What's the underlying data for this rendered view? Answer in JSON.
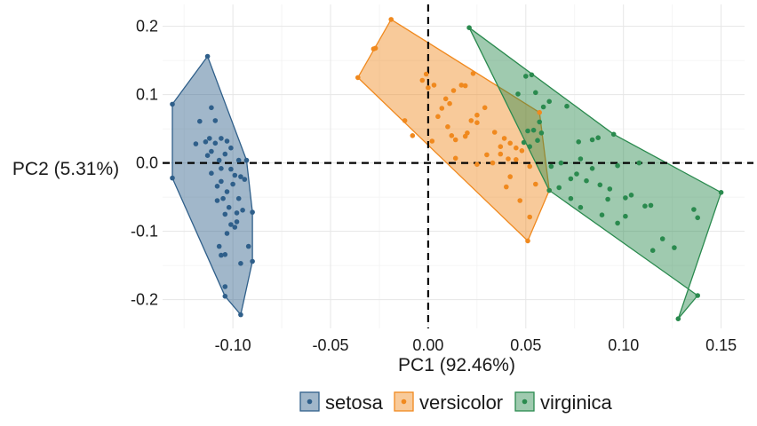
{
  "chart_data": {
    "type": "scatter",
    "xlabel": "PC1 (92.46%)",
    "ylabel": "PC2 (5.31%)",
    "xlim": [
      -0.136,
      0.162
    ],
    "ylim": [
      -0.242,
      0.232
    ],
    "xticks": [
      -0.1,
      -0.05,
      0.0,
      0.05,
      0.1,
      0.15
    ],
    "xtick_labels": [
      "-0.10",
      "-0.05",
      "0.00",
      "0.05",
      "0.10",
      "0.15"
    ],
    "yticks": [
      -0.2,
      -0.1,
      0.0,
      0.1,
      0.2
    ],
    "ytick_labels": [
      "-0.2",
      "-0.1",
      "0.0",
      "0.1",
      "0.2"
    ],
    "grid": true,
    "reference_lines": {
      "x": 0,
      "y": 0,
      "style": "dashed"
    },
    "legend_position": "bottom",
    "series": [
      {
        "name": "setosa",
        "color": "#2f5f8a",
        "hull": [
          [
            -0.113,
            0.156
          ],
          [
            -0.131,
            0.086
          ],
          [
            -0.131,
            -0.022
          ],
          [
            -0.104,
            -0.195
          ],
          [
            -0.096,
            -0.222
          ],
          [
            -0.09,
            -0.144
          ],
          [
            -0.09,
            -0.072
          ],
          [
            -0.093,
            0.004
          ]
        ],
        "points": [
          [
            -0.113,
            0.156
          ],
          [
            -0.131,
            0.086
          ],
          [
            -0.131,
            -0.022
          ],
          [
            -0.104,
            -0.195
          ],
          [
            -0.096,
            -0.222
          ],
          [
            -0.09,
            -0.144
          ],
          [
            -0.09,
            -0.072
          ],
          [
            -0.093,
            0.004
          ],
          [
            -0.117,
            0.061
          ],
          [
            -0.111,
            0.081
          ],
          [
            -0.109,
            0.062
          ],
          [
            -0.112,
            0.036
          ],
          [
            -0.114,
            0.031
          ],
          [
            -0.106,
            0.036
          ],
          [
            -0.103,
            0.032
          ],
          [
            -0.109,
            0.029
          ],
          [
            -0.101,
            0.022
          ],
          [
            -0.111,
            0.017
          ],
          [
            -0.104,
            0.013
          ],
          [
            -0.097,
            0.004
          ],
          [
            -0.119,
            0.028
          ],
          [
            -0.113,
            0.011
          ],
          [
            -0.107,
            0.004
          ],
          [
            -0.106,
            -0.008
          ],
          [
            -0.101,
            -0.009
          ],
          [
            -0.111,
            -0.015
          ],
          [
            -0.099,
            -0.018
          ],
          [
            -0.096,
            -0.02
          ],
          [
            -0.106,
            -0.027
          ],
          [
            -0.1,
            -0.031
          ],
          [
            -0.094,
            -0.024
          ],
          [
            -0.108,
            -0.034
          ],
          [
            -0.103,
            -0.042
          ],
          [
            -0.105,
            -0.052
          ],
          [
            -0.097,
            -0.052
          ],
          [
            -0.095,
            -0.069
          ],
          [
            -0.098,
            -0.073
          ],
          [
            -0.104,
            -0.075
          ],
          [
            -0.108,
            -0.055
          ],
          [
            -0.102,
            -0.065
          ],
          [
            -0.101,
            -0.09
          ],
          [
            -0.099,
            -0.094
          ],
          [
            -0.103,
            -0.103
          ],
          [
            -0.092,
            -0.122
          ],
          [
            -0.106,
            -0.135
          ],
          [
            -0.104,
            -0.134
          ],
          [
            -0.096,
            -0.147
          ],
          [
            -0.104,
            -0.181
          ],
          [
            -0.107,
            -0.122
          ],
          [
            -0.098,
            -0.086
          ]
        ]
      },
      {
        "name": "versicolor",
        "color": "#f0891e",
        "hull": [
          [
            -0.019,
            0.21
          ],
          [
            0.057,
            0.074
          ],
          [
            0.062,
            -0.04
          ],
          [
            0.051,
            -0.114
          ],
          [
            -0.036,
            0.125
          ]
        ],
        "points": [
          [
            -0.019,
            0.21
          ],
          [
            0.057,
            0.074
          ],
          [
            0.062,
            -0.04
          ],
          [
            0.051,
            -0.114
          ],
          [
            -0.036,
            0.125
          ],
          [
            -0.028,
            0.167
          ],
          [
            -0.027,
            0.168
          ],
          [
            0.0,
            0.11
          ],
          [
            0.003,
            0.114
          ],
          [
            -0.003,
            0.121
          ],
          [
            -0.001,
            0.13
          ],
          [
            0.017,
            0.114
          ],
          [
            0.023,
            0.131
          ],
          [
            0.013,
            0.106
          ],
          [
            0.019,
            0.113
          ],
          [
            0.009,
            0.094
          ],
          [
            0.011,
            0.087
          ],
          [
            0.007,
            0.08
          ],
          [
            0.005,
            0.068
          ],
          [
            -0.012,
            0.062
          ],
          [
            0.01,
            0.053
          ],
          [
            0.012,
            0.04
          ],
          [
            0.02,
            0.044
          ],
          [
            0.025,
            0.059
          ],
          [
            0.025,
            0.07
          ],
          [
            0.029,
            0.081
          ],
          [
            0.022,
            0.062
          ],
          [
            -0.008,
            0.04
          ],
          [
            0.002,
            0.032
          ],
          [
            0.014,
            0.034
          ],
          [
            0.019,
            0.039
          ],
          [
            0.034,
            0.045
          ],
          [
            0.037,
            0.024
          ],
          [
            0.039,
            0.036
          ],
          [
            0.042,
            0.029
          ],
          [
            0.045,
            0.022
          ],
          [
            0.037,
            0.013
          ],
          [
            0.041,
            0.006
          ],
          [
            0.048,
            0.018
          ],
          [
            0.045,
            0.005
          ],
          [
            0.033,
            0.0
          ],
          [
            0.03,
            0.012
          ],
          [
            0.025,
            -0.002
          ],
          [
            0.014,
            0.007
          ],
          [
            0.042,
            -0.02
          ],
          [
            0.052,
            -0.005
          ],
          [
            0.055,
            -0.031
          ],
          [
            0.047,
            -0.055
          ],
          [
            0.052,
            -0.079
          ],
          [
            0.04,
            -0.035
          ]
        ]
      },
      {
        "name": "virginica",
        "color": "#2a8a4e",
        "hull": [
          [
            0.021,
            0.198
          ],
          [
            0.095,
            0.042
          ],
          [
            0.15,
            -0.043
          ],
          [
            0.128,
            -0.228
          ],
          [
            0.138,
            -0.194
          ],
          [
            0.062,
            -0.04
          ]
        ],
        "points": [
          [
            0.021,
            0.198
          ],
          [
            0.095,
            0.042
          ],
          [
            0.15,
            -0.043
          ],
          [
            0.128,
            -0.228
          ],
          [
            0.138,
            -0.194
          ],
          [
            0.062,
            -0.04
          ],
          [
            0.05,
            0.127
          ],
          [
            0.053,
            0.129
          ],
          [
            0.046,
            0.101
          ],
          [
            0.055,
            0.103
          ],
          [
            0.062,
            0.09
          ],
          [
            0.059,
            0.082
          ],
          [
            0.071,
            0.083
          ],
          [
            0.057,
            0.06
          ],
          [
            0.054,
            0.048
          ],
          [
            0.051,
            0.047
          ],
          [
            0.056,
            0.033
          ],
          [
            0.058,
            0.044
          ],
          [
            0.049,
            0.03
          ],
          [
            0.052,
            0.024
          ],
          [
            0.077,
            0.031
          ],
          [
            0.084,
            0.034
          ],
          [
            0.087,
            0.037
          ],
          [
            0.078,
            0.006
          ],
          [
            0.068,
            0.0
          ],
          [
            0.063,
            -0.005
          ],
          [
            0.084,
            -0.008
          ],
          [
            0.076,
            -0.016
          ],
          [
            0.097,
            -0.004
          ],
          [
            0.108,
            0.0
          ],
          [
            0.073,
            -0.023
          ],
          [
            0.081,
            -0.026
          ],
          [
            0.088,
            -0.032
          ],
          [
            0.093,
            -0.038
          ],
          [
            0.101,
            -0.051
          ],
          [
            0.104,
            -0.047
          ],
          [
            0.092,
            -0.053
          ],
          [
            0.078,
            -0.065
          ],
          [
            0.101,
            -0.078
          ],
          [
            0.114,
            -0.062
          ],
          [
            0.111,
            -0.063
          ],
          [
            0.097,
            -0.088
          ],
          [
            0.136,
            -0.068
          ],
          [
            0.138,
            -0.08
          ],
          [
            0.12,
            -0.111
          ],
          [
            0.126,
            -0.124
          ],
          [
            0.115,
            -0.128
          ],
          [
            0.067,
            -0.036
          ],
          [
            0.073,
            -0.052
          ],
          [
            0.089,
            -0.076
          ]
        ]
      }
    ]
  }
}
